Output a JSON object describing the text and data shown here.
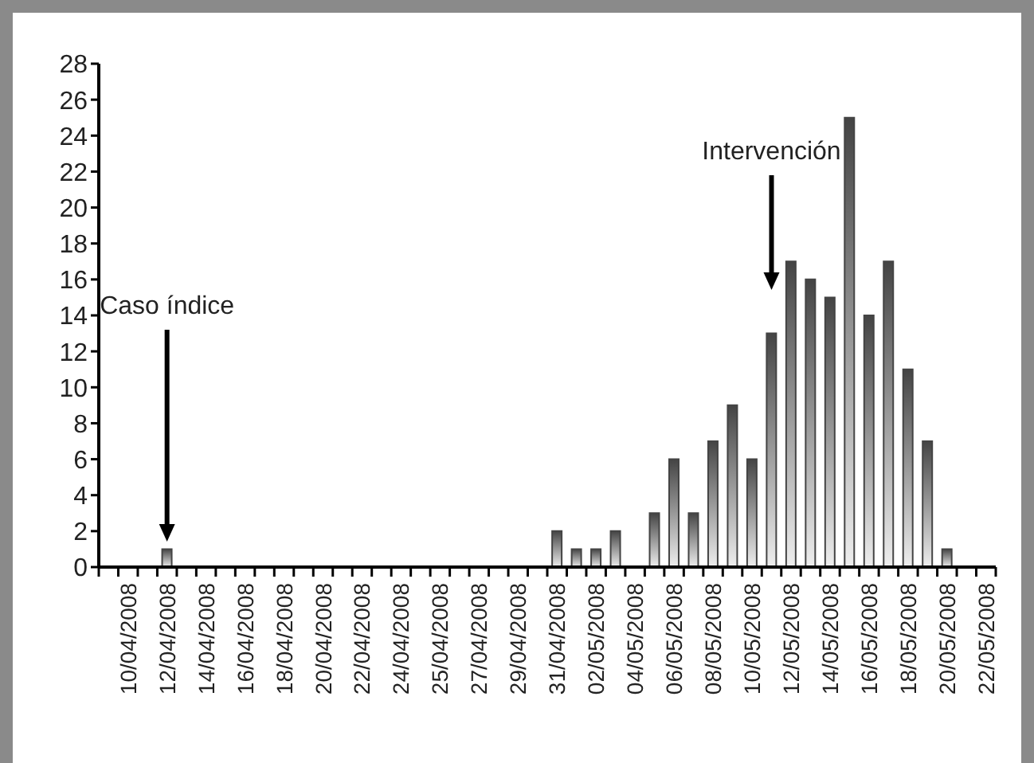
{
  "chart_data": {
    "type": "bar",
    "categories": [
      null,
      "10/04/2008",
      null,
      "12/04/2008",
      null,
      "14/04/2008",
      null,
      "16/04/2008",
      null,
      "18/04/2008",
      null,
      "20/04/2008",
      null,
      "22/04/2008",
      null,
      "24/04/2008",
      null,
      "25/04/2008",
      null,
      "27/04/2008",
      null,
      "29/04/2008",
      null,
      "31/04/2008",
      null,
      "02/05/2008",
      null,
      "04/05/2008",
      null,
      "06/05/2008",
      null,
      "08/05/2008",
      null,
      "10/05/2008",
      null,
      "12/05/2008",
      null,
      "14/05/2008",
      null,
      "16/05/2008",
      null,
      "18/05/2008",
      null,
      "20/05/2008",
      null,
      "22/05/2008"
    ],
    "values": [
      0,
      0,
      0,
      1,
      0,
      0,
      0,
      0,
      0,
      0,
      0,
      0,
      0,
      0,
      0,
      0,
      0,
      0,
      0,
      0,
      0,
      0,
      0,
      2,
      1,
      1,
      2,
      0,
      3,
      6,
      3,
      7,
      9,
      6,
      13,
      17,
      16,
      15,
      25,
      14,
      17,
      11,
      7,
      1,
      0,
      0
    ],
    "color": "#444444",
    "ylim": [
      0,
      28
    ],
    "yticks": [
      0,
      2,
      4,
      6,
      8,
      10,
      12,
      14,
      16,
      18,
      20,
      22,
      24,
      26,
      28
    ],
    "annotations": [
      "Caso índice",
      "Intervención"
    ]
  }
}
